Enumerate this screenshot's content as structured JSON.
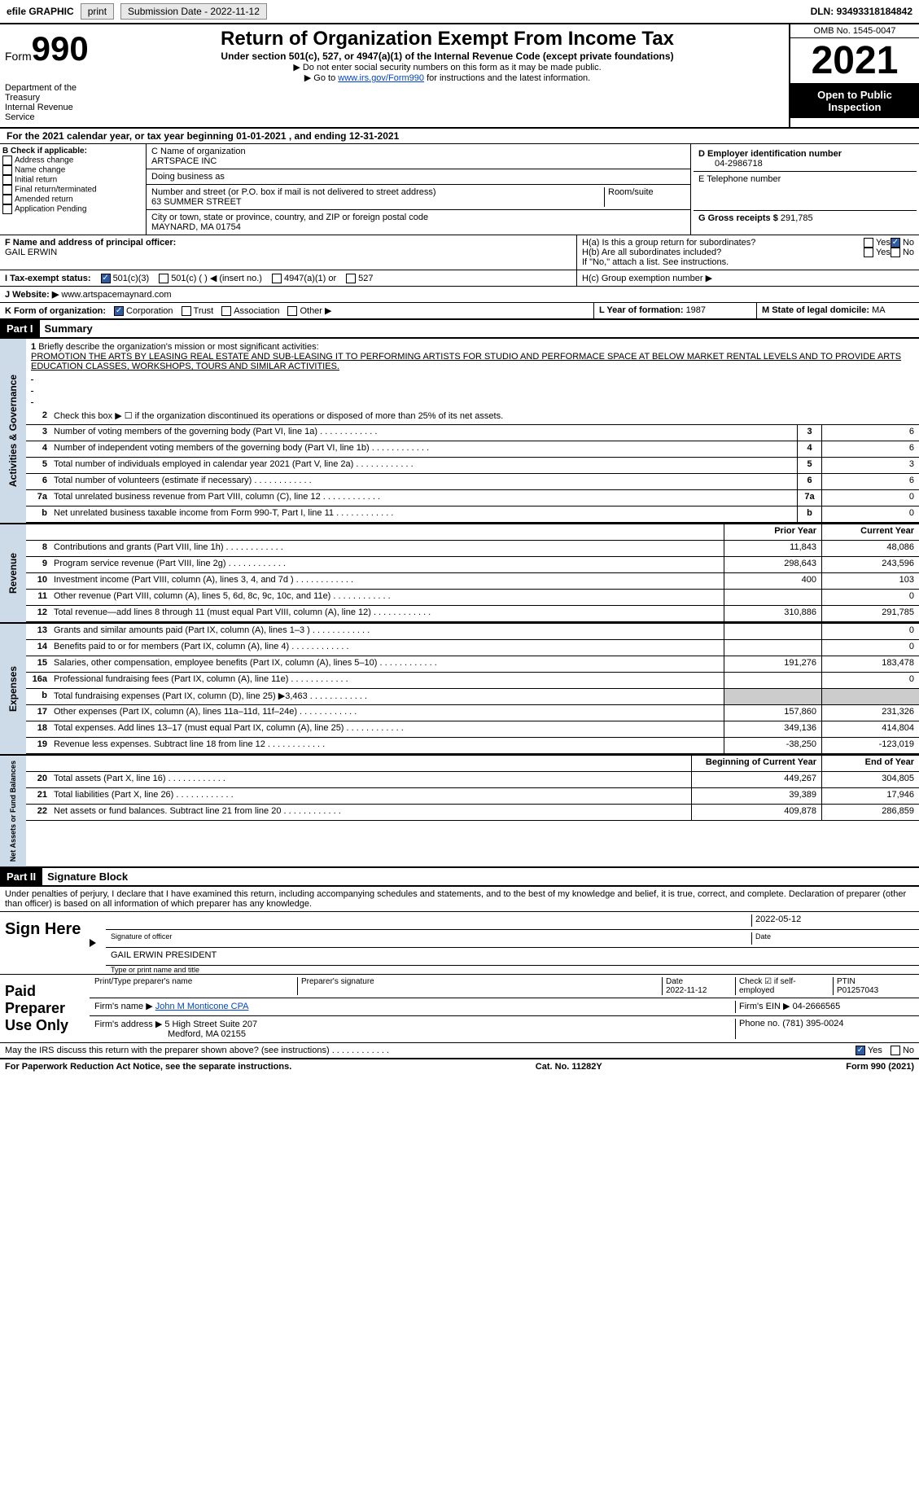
{
  "top": {
    "efile": "efile GRAPHIC",
    "print": "print",
    "sub_date_label": "Submission Date - ",
    "sub_date": "2022-11-12",
    "dln_label": "DLN: ",
    "dln": "93493318184842"
  },
  "header": {
    "form_label": "Form",
    "form_num": "990",
    "dept": "Department of the Treasury\nInternal Revenue Service",
    "title": "Return of Organization Exempt From Income Tax",
    "subtitle": "Under section 501(c), 527, or 4947(a)(1) of the Internal Revenue Code (except private foundations)",
    "instr1": "▶ Do not enter social security numbers on this form as it may be made public.",
    "instr2_a": "▶ Go to ",
    "instr2_link": "www.irs.gov/Form990",
    "instr2_b": " for instructions and the latest information.",
    "omb": "OMB No. 1545-0047",
    "year": "2021",
    "pub": "Open to Public Inspection"
  },
  "period": {
    "text_a": "For the 2021 calendar year, or tax year beginning ",
    "begin": "01-01-2021",
    "text_b": " , and ending ",
    "end": "12-31-2021"
  },
  "boxB": {
    "label": "B Check if applicable:",
    "items": [
      "Address change",
      "Name change",
      "Initial return",
      "Final return/terminated",
      "Amended return",
      "Application Pending"
    ]
  },
  "boxC": {
    "name_label": "C Name of organization",
    "name": "ARTSPACE INC",
    "dba_label": "Doing business as",
    "dba": "",
    "street_label": "Number and street (or P.O. box if mail is not delivered to street address)",
    "street": "63 SUMMER STREET",
    "room_label": "Room/suite",
    "room": "",
    "city_label": "City or town, state or province, country, and ZIP or foreign postal code",
    "city": "MAYNARD, MA  01754"
  },
  "boxD": {
    "label": "D Employer identification number",
    "value": "04-2986718"
  },
  "boxE": {
    "label": "E Telephone number",
    "value": ""
  },
  "boxG": {
    "label": "G Gross receipts $ ",
    "value": "291,785"
  },
  "boxF": {
    "label": "F  Name and address of principal officer:",
    "name": "GAIL ERWIN"
  },
  "boxH": {
    "a": "H(a)  Is this a group return for subordinates?",
    "b": "H(b)  Are all subordinates included?",
    "b_note": "If \"No,\" attach a list. See instructions.",
    "c": "H(c)  Group exemption number ▶",
    "yes": "Yes",
    "no": "No"
  },
  "boxI": {
    "label": "I  Tax-exempt status:",
    "o1": "501(c)(3)",
    "o2": "501(c) (  ) ◀ (insert no.)",
    "o3": "4947(a)(1) or",
    "o4": "527"
  },
  "boxJ": {
    "label": "J  Website: ▶",
    "value": "www.artspacemaynard.com"
  },
  "boxK": {
    "label": "K Form of organization:",
    "o1": "Corporation",
    "o2": "Trust",
    "o3": "Association",
    "o4": "Other ▶"
  },
  "boxL": {
    "label": "L Year of formation: ",
    "value": "1987"
  },
  "boxM": {
    "label": "M State of legal domicile: ",
    "value": "MA"
  },
  "part1": {
    "hdr": "Part I",
    "title": "Summary",
    "l1_label": "Briefly describe the organization's mission or most significant activities:",
    "l1_text": "PROMOTION THE ARTS BY LEASING REAL ESTATE AND SUB-LEASING IT TO PERFORMING ARTISTS FOR STUDIO AND PERFORMACE SPACE AT BELOW MARKET RENTAL LEVELS AND TO PROVIDE ARTS EDUCATION CLASSES, WORKSHOPS, TOURS AND SIMILAR ACTIVITIES.",
    "l2": "Check this box ▶ ☐ if the organization discontinued its operations or disposed of more than 25% of its net assets.",
    "vtab_ag": "Activities & Governance",
    "vtab_rev": "Revenue",
    "vtab_exp": "Expenses",
    "vtab_na": "Net Assets or Fund Balances",
    "lines_ag": [
      {
        "n": "3",
        "d": "Number of voting members of the governing body (Part VI, line 1a)",
        "v": "6"
      },
      {
        "n": "4",
        "d": "Number of independent voting members of the governing body (Part VI, line 1b)",
        "v": "6"
      },
      {
        "n": "5",
        "d": "Total number of individuals employed in calendar year 2021 (Part V, line 2a)",
        "v": "3"
      },
      {
        "n": "6",
        "d": "Total number of volunteers (estimate if necessary)",
        "v": "6"
      },
      {
        "n": "7a",
        "d": "Total unrelated business revenue from Part VIII, column (C), line 12",
        "v": "0"
      },
      {
        "n": "b",
        "d": "Net unrelated business taxable income from Form 990-T, Part I, line 11",
        "v": "0"
      }
    ],
    "colhdr_prior": "Prior Year",
    "colhdr_curr": "Current Year",
    "colhdr_begin": "Beginning of Current Year",
    "colhdr_end": "End of Year",
    "lines_rev": [
      {
        "n": "8",
        "d": "Contributions and grants (Part VIII, line 1h)",
        "p": "11,843",
        "c": "48,086"
      },
      {
        "n": "9",
        "d": "Program service revenue (Part VIII, line 2g)",
        "p": "298,643",
        "c": "243,596"
      },
      {
        "n": "10",
        "d": "Investment income (Part VIII, column (A), lines 3, 4, and 7d )",
        "p": "400",
        "c": "103"
      },
      {
        "n": "11",
        "d": "Other revenue (Part VIII, column (A), lines 5, 6d, 8c, 9c, 10c, and 11e)",
        "p": "",
        "c": "0"
      },
      {
        "n": "12",
        "d": "Total revenue—add lines 8 through 11 (must equal Part VIII, column (A), line 12)",
        "p": "310,886",
        "c": "291,785"
      }
    ],
    "lines_exp": [
      {
        "n": "13",
        "d": "Grants and similar amounts paid (Part IX, column (A), lines 1–3 )",
        "p": "",
        "c": "0"
      },
      {
        "n": "14",
        "d": "Benefits paid to or for members (Part IX, column (A), line 4)",
        "p": "",
        "c": "0"
      },
      {
        "n": "15",
        "d": "Salaries, other compensation, employee benefits (Part IX, column (A), lines 5–10)",
        "p": "191,276",
        "c": "183,478"
      },
      {
        "n": "16a",
        "d": "Professional fundraising fees (Part IX, column (A), line 11e)",
        "p": "",
        "c": "0"
      },
      {
        "n": "b",
        "d": "Total fundraising expenses (Part IX, column (D), line 25) ▶3,463",
        "p": "SHADE",
        "c": "SHADE"
      },
      {
        "n": "17",
        "d": "Other expenses (Part IX, column (A), lines 11a–11d, 11f–24e)",
        "p": "157,860",
        "c": "231,326"
      },
      {
        "n": "18",
        "d": "Total expenses. Add lines 13–17 (must equal Part IX, column (A), line 25)",
        "p": "349,136",
        "c": "414,804"
      },
      {
        "n": "19",
        "d": "Revenue less expenses. Subtract line 18 from line 12",
        "p": "-38,250",
        "c": "-123,019"
      }
    ],
    "lines_na": [
      {
        "n": "20",
        "d": "Total assets (Part X, line 16)",
        "p": "449,267",
        "c": "304,805"
      },
      {
        "n": "21",
        "d": "Total liabilities (Part X, line 26)",
        "p": "39,389",
        "c": "17,946"
      },
      {
        "n": "22",
        "d": "Net assets or fund balances. Subtract line 21 from line 20",
        "p": "409,878",
        "c": "286,859"
      }
    ]
  },
  "part2": {
    "hdr": "Part II",
    "title": "Signature Block",
    "penalties": "Under penalties of perjury, I declare that I have examined this return, including accompanying schedules and statements, and to the best of my knowledge and belief, it is true, correct, and complete. Declaration of preparer (other than officer) is based on all information of which preparer has any knowledge.",
    "sign_here": "Sign Here",
    "sig_officer": "Signature of officer",
    "sig_date": "2022-05-12",
    "date_lbl": "Date",
    "officer_name": "GAIL ERWIN  PRESIDENT",
    "type_name": "Type or print name and title",
    "paid_prep": "Paid Preparer Use Only",
    "prep_name_lbl": "Print/Type preparer's name",
    "prep_sig_lbl": "Preparer's signature",
    "prep_date_lbl": "Date",
    "prep_date": "2022-11-12",
    "check_self": "Check ☑ if self-employed",
    "ptin_lbl": "PTIN",
    "ptin": "P01257043",
    "firm_name_lbl": "Firm's name  ▶ ",
    "firm_name": "John M Monticone CPA",
    "firm_ein_lbl": "Firm's EIN ▶ ",
    "firm_ein": "04-2666565",
    "firm_addr_lbl": "Firm's address ▶ ",
    "firm_addr1": "5 High Street Suite 207",
    "firm_addr2": "Medford, MA  02155",
    "phone_lbl": "Phone no. ",
    "phone": "(781) 395-0024",
    "may_irs": "May the IRS discuss this return with the preparer shown above? (see instructions)",
    "yes": "Yes",
    "no": "No"
  },
  "footer": {
    "left": "For Paperwork Reduction Act Notice, see the separate instructions.",
    "center": "Cat. No. 11282Y",
    "right": "Form 990 (2021)"
  }
}
